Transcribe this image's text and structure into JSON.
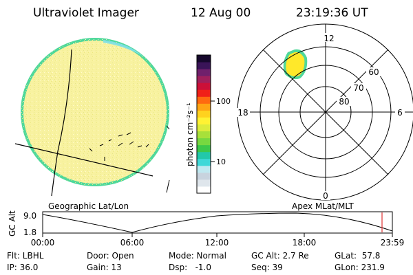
{
  "header": {
    "title": "Ultraviolet Imager",
    "date": "12 Aug 00",
    "time": "23:19:36 UT"
  },
  "colorbar": {
    "unit_label": "photon cm⁻²s⁻¹",
    "tick_labels": [
      "100",
      "10"
    ],
    "colors": [
      "#ffffff",
      "#dfe6ec",
      "#c8d3de",
      "#bfe8f0",
      "#3fd8d8",
      "#22c8aa",
      "#3cc84a",
      "#77d840",
      "#a8e03a",
      "#dcec3c",
      "#fff233",
      "#ffd21e",
      "#ffa514",
      "#ff6a10",
      "#f02018",
      "#cc1038",
      "#a0205c",
      "#70206c",
      "#3a1458",
      "#16082c"
    ]
  },
  "polar_plot": {
    "clock_labels": [
      "12",
      "18",
      "6",
      "0"
    ],
    "latitude_labels": [
      "60",
      "70",
      "80"
    ]
  },
  "globe": {
    "fill_color": "#f8f2a0",
    "limb_color": "#4fd89a",
    "edge_color": "#4fd8c0"
  },
  "panel_labels": {
    "left": "Geographic Lat/Lon",
    "right": "Apex MLat/MLT"
  },
  "altitude_plot": {
    "axis_title": "GC Alt",
    "ymax_label": "9.0",
    "ymin_label": "1.8",
    "time_ticks": [
      "00:00",
      "06:00",
      "12:00",
      "18:00",
      "23:59"
    ],
    "marker_color": "#e03030"
  },
  "info": {
    "filter": "Flt: LBHL",
    "ip": "IP: 36.0",
    "door": "Door: Open",
    "gain": "Gain: 13",
    "mode": "Mode: Normal",
    "dsp": "Dsp:   -1.0",
    "gc_alt": "GC Alt: 2.7 Re",
    "seq": "Seq: 39",
    "glat": "GLat:  57.8",
    "glon": "GLon: 231.9"
  }
}
